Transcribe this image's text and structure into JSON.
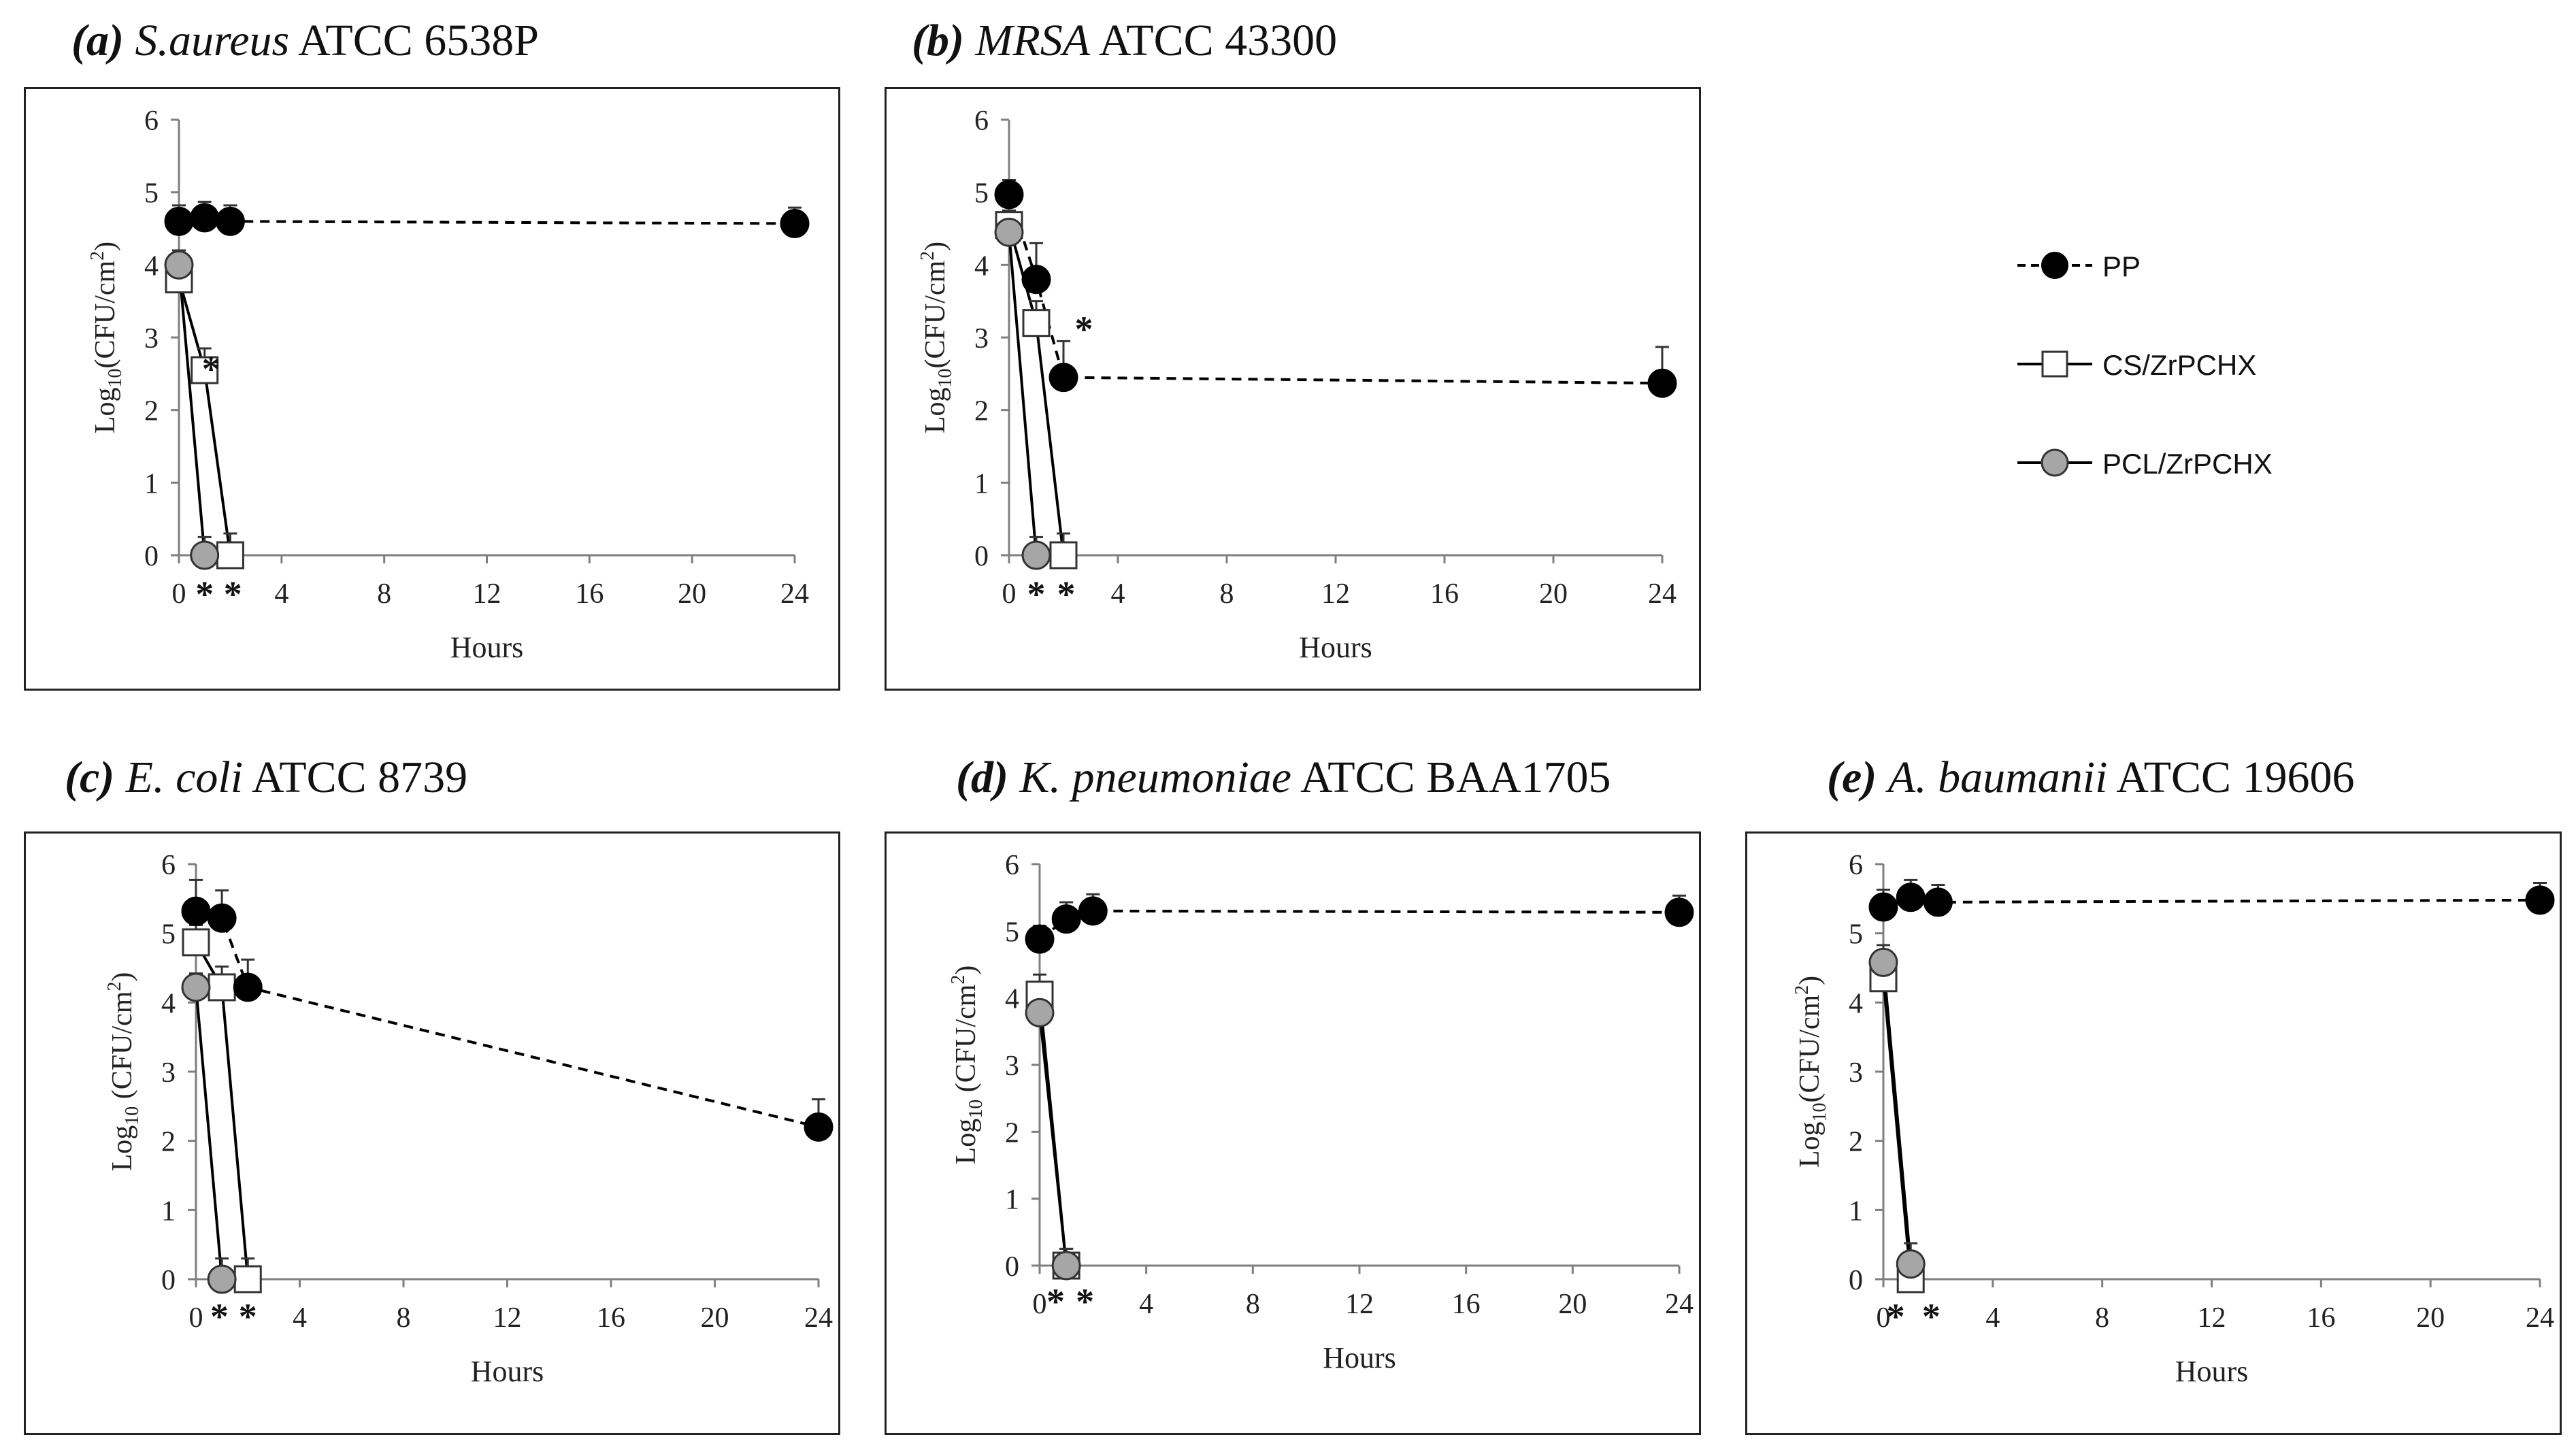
{
  "legend": {
    "items": [
      {
        "name": "PP",
        "style": "dashed",
        "marker": "filled-circle"
      },
      {
        "name": "CS/ZrPCHX",
        "style": "solid",
        "marker": "open-square"
      },
      {
        "name": "PCL/ZrPCHX",
        "style": "solid",
        "marker": "grey-circle"
      }
    ]
  },
  "colors": {
    "pp": "#000000",
    "cs": "#ffffff",
    "pcl": "#a6a6a6",
    "axis": "#7f7f7f",
    "line": "#000000"
  },
  "chart_data": [
    {
      "type": "line",
      "panel": "a",
      "title_label": "(a)",
      "title_organism": "S.aureus",
      "title_strain": "ATCC 6538P",
      "xlabel": "Hours",
      "ylabel_main": "Log",
      "ylabel_sub": "10",
      "ylabel_unit": "(CFU/cm",
      "ylabel_sup": "2",
      "ylabel_end": ")",
      "xlim": [
        0,
        24
      ],
      "ylim": [
        0,
        6
      ],
      "xticks": [
        0,
        4,
        8,
        12,
        16,
        20,
        24
      ],
      "yticks": [
        0,
        1,
        2,
        3,
        4,
        5,
        6
      ],
      "series": [
        {
          "name": "PP",
          "x": [
            0,
            1,
            2,
            24
          ],
          "y": [
            4.6,
            4.65,
            4.6,
            4.57
          ],
          "err": [
            0.22,
            0.22,
            0.22,
            0.22
          ]
        },
        {
          "name": "CS/ZrPCHX",
          "x": [
            0,
            1,
            2
          ],
          "y": [
            3.8,
            2.55,
            0
          ],
          "err": [
            0.2,
            0.3,
            0.3
          ]
        },
        {
          "name": "PCL/ZrPCHX",
          "x": [
            0,
            1
          ],
          "y": [
            4.0,
            0
          ],
          "err": [
            0.2,
            0.25
          ]
        }
      ],
      "annotations": [
        {
          "text": "*",
          "x": 1.25,
          "y": 2.6
        },
        {
          "text": "*",
          "x": 1.0,
          "y": -0.5
        },
        {
          "text": "*",
          "x": 2.1,
          "y": -0.5
        }
      ]
    },
    {
      "type": "line",
      "panel": "b",
      "title_label": "(b)",
      "title_organism": "MRSA",
      "title_strain": "ATCC 43300",
      "xlabel": "Hours",
      "ylabel_main": "Log",
      "ylabel_sub": "10",
      "ylabel_unit": "(CFU/cm",
      "ylabel_sup": "2",
      "ylabel_end": ")",
      "xlim": [
        0,
        24
      ],
      "ylim": [
        0,
        6
      ],
      "xticks": [
        0,
        4,
        8,
        12,
        16,
        20,
        24
      ],
      "yticks": [
        0,
        1,
        2,
        3,
        4,
        5,
        6
      ],
      "series": [
        {
          "name": "PP",
          "x": [
            0,
            1,
            2,
            24
          ],
          "y": [
            4.97,
            3.8,
            2.45,
            2.37
          ],
          "err": [
            0.2,
            0.5,
            0.5,
            0.5
          ]
        },
        {
          "name": "CS/ZrPCHX",
          "x": [
            0,
            1,
            2
          ],
          "y": [
            4.55,
            3.2,
            0
          ],
          "err": [
            0.2,
            0.3,
            0.3
          ]
        },
        {
          "name": "PCL/ZrPCHX",
          "x": [
            0,
            1
          ],
          "y": [
            4.45,
            0
          ],
          "err": [
            0.2,
            0.25
          ]
        }
      ],
      "annotations": [
        {
          "text": "*",
          "x": 2.75,
          "y": 3.15
        },
        {
          "text": "*",
          "x": 1.0,
          "y": -0.5
        },
        {
          "text": "*",
          "x": 2.1,
          "y": -0.5
        }
      ]
    },
    {
      "type": "line",
      "panel": "c",
      "title_label": "(c)",
      "title_organism": "E. coli",
      "title_strain": "ATCC 8739",
      "xlabel": "Hours",
      "ylabel_main": "Log",
      "ylabel_sub": "10",
      "ylabel_unit": " (CFU/cm",
      "ylabel_sup": "2",
      "ylabel_end": ")",
      "xlim": [
        0,
        24
      ],
      "ylim": [
        0,
        6
      ],
      "xticks": [
        0,
        4,
        8,
        12,
        16,
        20,
        24
      ],
      "yticks": [
        0,
        1,
        2,
        3,
        4,
        5,
        6
      ],
      "series": [
        {
          "name": "PP",
          "x": [
            0,
            1,
            2,
            24
          ],
          "y": [
            5.32,
            5.22,
            4.22,
            2.2
          ],
          "err": [
            0.45,
            0.4,
            0.4,
            0.4
          ]
        },
        {
          "name": "CS/ZrPCHX",
          "x": [
            0,
            1,
            2
          ],
          "y": [
            4.87,
            4.22,
            0
          ],
          "err": [
            0.25,
            0.3,
            0.3
          ]
        },
        {
          "name": "PCL/ZrPCHX",
          "x": [
            0,
            1
          ],
          "y": [
            4.22,
            0
          ],
          "err": [
            0.2,
            0.3
          ]
        }
      ],
      "annotations": [
        {
          "text": "*",
          "x": 0.9,
          "y": -0.5
        },
        {
          "text": "*",
          "x": 2.0,
          "y": -0.5
        }
      ]
    },
    {
      "type": "line",
      "panel": "d",
      "title_label": "(d)",
      "title_organism": "K. pneumoniae",
      "title_strain": "ATCC BAA1705",
      "xlabel": "Hours",
      "ylabel_main": "Log",
      "ylabel_sub": "10",
      "ylabel_unit": " (CFU/cm",
      "ylabel_sup": "2",
      "ylabel_end": ")",
      "xlim": [
        0,
        24
      ],
      "ylim": [
        0,
        6
      ],
      "xticks": [
        0,
        4,
        8,
        12,
        16,
        20,
        24
      ],
      "yticks": [
        0,
        1,
        2,
        3,
        4,
        5,
        6
      ],
      "series": [
        {
          "name": "PP",
          "x": [
            0,
            1,
            2,
            24
          ],
          "y": [
            4.88,
            5.18,
            5.3,
            5.28
          ],
          "err": [
            0.2,
            0.25,
            0.25,
            0.25
          ]
        },
        {
          "name": "CS/ZrPCHX",
          "x": [
            0,
            1
          ],
          "y": [
            4.05,
            0
          ],
          "err": [
            0.3,
            0.25
          ]
        },
        {
          "name": "PCL/ZrPCHX",
          "x": [
            0,
            1
          ],
          "y": [
            3.78,
            0
          ],
          "err": [
            0.2,
            0.25
          ]
        }
      ],
      "annotations": [
        {
          "text": "*",
          "x": 0.6,
          "y": -0.5
        },
        {
          "text": "*",
          "x": 1.7,
          "y": -0.5
        }
      ]
    },
    {
      "type": "line",
      "panel": "e",
      "title_label": "(e)",
      "title_organism": "A. baumanii",
      "title_strain": "ATCC 19606",
      "xlabel": "Hours",
      "ylabel_main": "Log",
      "ylabel_sub": "10",
      "ylabel_unit": "(CFU/cm",
      "ylabel_sup": "2",
      "ylabel_end": ")",
      "xlim": [
        0,
        24
      ],
      "ylim": [
        0,
        6
      ],
      "xticks": [
        0,
        4,
        8,
        12,
        16,
        20,
        24
      ],
      "yticks": [
        0,
        1,
        2,
        3,
        4,
        5,
        6
      ],
      "series": [
        {
          "name": "PP",
          "x": [
            0,
            1,
            2,
            24
          ],
          "y": [
            5.38,
            5.52,
            5.45,
            5.48
          ],
          "err": [
            0.25,
            0.25,
            0.25,
            0.25
          ]
        },
        {
          "name": "CS/ZrPCHX",
          "x": [
            0,
            1
          ],
          "y": [
            4.35,
            0
          ],
          "err": [
            0.3,
            0.3
          ]
        },
        {
          "name": "PCL/ZrPCHX",
          "x": [
            0,
            1
          ],
          "y": [
            4.58,
            0.22
          ],
          "err": [
            0.25,
            0.3
          ]
        }
      ],
      "annotations": [
        {
          "text": "*",
          "x": 0.45,
          "y": -0.5
        },
        {
          "text": "*",
          "x": 1.75,
          "y": -0.5
        }
      ]
    }
  ]
}
